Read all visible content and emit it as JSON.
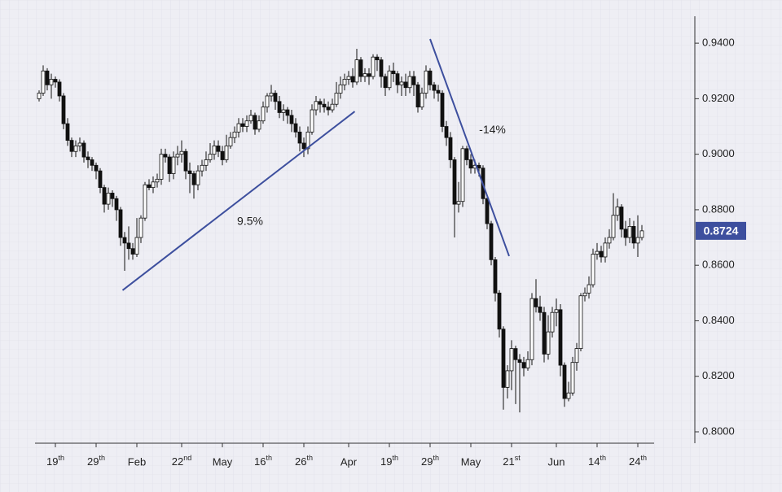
{
  "chart_data": {
    "type": "candlestick",
    "open": [
      0.92,
      0.922,
      0.93,
      0.925,
      0.927,
      0.926,
      0.921,
      0.911,
      0.905,
      0.901,
      0.903,
      0.904,
      0.899,
      0.898,
      0.896,
      0.894,
      0.888,
      0.882,
      0.886,
      0.884,
      0.88,
      0.87,
      0.868,
      0.866,
      0.864,
      0.87,
      0.877,
      0.889,
      0.888,
      0.89,
      0.891,
      0.9,
      0.899,
      0.893,
      0.899,
      0.9,
      0.901,
      0.894,
      0.893,
      0.889,
      0.894,
      0.896,
      0.898,
      0.9,
      0.903,
      0.901,
      0.898,
      0.903,
      0.906,
      0.908,
      0.911,
      0.91,
      0.912,
      0.914,
      0.909,
      0.912,
      0.917,
      0.921,
      0.922,
      0.919,
      0.915,
      0.916,
      0.914,
      0.911,
      0.908,
      0.904,
      0.902,
      0.908,
      0.916,
      0.919,
      0.918,
      0.917,
      0.916,
      0.918,
      0.922,
      0.925,
      0.927,
      0.928,
      0.926,
      0.934,
      0.928,
      0.929,
      0.928,
      0.935,
      0.934,
      0.928,
      0.924,
      0.93,
      0.929,
      0.925,
      0.926,
      0.924,
      0.928,
      0.925,
      0.917,
      0.922,
      0.93,
      0.925,
      0.923,
      0.922,
      0.91,
      0.906,
      0.898,
      0.882,
      0.883,
      0.902,
      0.898,
      0.895,
      0.896,
      0.895,
      0.884,
      0.875,
      0.862,
      0.85,
      0.837,
      0.816,
      0.822,
      0.83,
      0.826,
      0.825,
      0.823,
      0.826,
      0.848,
      0.845,
      0.843,
      0.828,
      0.836,
      0.843,
      0.844,
      0.824,
      0.812,
      0.814,
      0.825,
      0.83,
      0.849,
      0.85,
      0.853,
      0.864,
      0.865,
      0.863,
      0.868,
      0.87,
      0.878,
      0.881,
      0.873,
      0.87,
      0.874,
      0.868,
      0.87
    ],
    "high": [
      0.923,
      0.932,
      0.931,
      0.929,
      0.928,
      0.927,
      0.922,
      0.913,
      0.906,
      0.905,
      0.906,
      0.905,
      0.901,
      0.899,
      0.897,
      0.895,
      0.889,
      0.888,
      0.887,
      0.885,
      0.881,
      0.872,
      0.874,
      0.868,
      0.877,
      0.878,
      0.89,
      0.891,
      0.892,
      0.893,
      0.902,
      0.902,
      0.9,
      0.901,
      0.903,
      0.905,
      0.902,
      0.897,
      0.894,
      0.896,
      0.898,
      0.901,
      0.904,
      0.905,
      0.905,
      0.903,
      0.907,
      0.908,
      0.91,
      0.913,
      0.913,
      0.914,
      0.916,
      0.915,
      0.914,
      0.919,
      0.922,
      0.925,
      0.923,
      0.921,
      0.918,
      0.917,
      0.916,
      0.913,
      0.91,
      0.906,
      0.91,
      0.918,
      0.921,
      0.92,
      0.92,
      0.919,
      0.92,
      0.926,
      0.928,
      0.929,
      0.93,
      0.931,
      0.938,
      0.935,
      0.931,
      0.931,
      0.936,
      0.936,
      0.935,
      0.929,
      0.932,
      0.933,
      0.93,
      0.928,
      0.929,
      0.93,
      0.93,
      0.926,
      0.924,
      0.932,
      0.931,
      0.926,
      0.925,
      0.923,
      0.912,
      0.908,
      0.899,
      0.89,
      0.903,
      0.903,
      0.9,
      0.898,
      0.897,
      0.896,
      0.885,
      0.876,
      0.863,
      0.851,
      0.838,
      0.824,
      0.833,
      0.831,
      0.828,
      0.827,
      0.829,
      0.85,
      0.855,
      0.849,
      0.845,
      0.842,
      0.845,
      0.848,
      0.846,
      0.825,
      0.818,
      0.827,
      0.832,
      0.85,
      0.852,
      0.856,
      0.866,
      0.868,
      0.867,
      0.87,
      0.873,
      0.886,
      0.884,
      0.882,
      0.876,
      0.877,
      0.876,
      0.878,
      0.8745
    ],
    "low": [
      0.919,
      0.921,
      0.923,
      0.92,
      0.924,
      0.919,
      0.909,
      0.903,
      0.899,
      0.899,
      0.901,
      0.897,
      0.895,
      0.894,
      0.891,
      0.886,
      0.879,
      0.88,
      0.881,
      0.876,
      0.867,
      0.858,
      0.862,
      0.862,
      0.863,
      0.868,
      0.876,
      0.887,
      0.886,
      0.888,
      0.889,
      0.897,
      0.89,
      0.891,
      0.896,
      0.897,
      0.891,
      0.886,
      0.884,
      0.887,
      0.892,
      0.894,
      0.897,
      0.898,
      0.899,
      0.896,
      0.897,
      0.902,
      0.904,
      0.906,
      0.908,
      0.908,
      0.911,
      0.907,
      0.908,
      0.911,
      0.915,
      0.919,
      0.916,
      0.913,
      0.912,
      0.911,
      0.908,
      0.906,
      0.901,
      0.899,
      0.9,
      0.907,
      0.914,
      0.915,
      0.915,
      0.914,
      0.915,
      0.917,
      0.92,
      0.923,
      0.925,
      0.924,
      0.925,
      0.926,
      0.926,
      0.925,
      0.927,
      0.93,
      0.924,
      0.921,
      0.923,
      0.926,
      0.922,
      0.921,
      0.921,
      0.922,
      0.921,
      0.915,
      0.916,
      0.92,
      0.923,
      0.92,
      0.919,
      0.908,
      0.903,
      0.895,
      0.87,
      0.879,
      0.881,
      0.896,
      0.893,
      0.893,
      0.892,
      0.882,
      0.873,
      0.86,
      0.847,
      0.834,
      0.808,
      0.812,
      0.815,
      0.81,
      0.807,
      0.82,
      0.822,
      0.824,
      0.843,
      0.84,
      0.825,
      0.826,
      0.834,
      0.838,
      0.82,
      0.809,
      0.811,
      0.813,
      0.822,
      0.829,
      0.847,
      0.848,
      0.852,
      0.862,
      0.861,
      0.861,
      0.866,
      0.869,
      0.876,
      0.87,
      0.867,
      0.868,
      0.866,
      0.863,
      0.869
    ],
    "close": [
      0.922,
      0.93,
      0.925,
      0.927,
      0.926,
      0.921,
      0.911,
      0.905,
      0.901,
      0.903,
      0.904,
      0.899,
      0.898,
      0.896,
      0.894,
      0.888,
      0.882,
      0.886,
      0.884,
      0.88,
      0.87,
      0.868,
      0.866,
      0.864,
      0.87,
      0.877,
      0.889,
      0.888,
      0.89,
      0.891,
      0.9,
      0.899,
      0.893,
      0.899,
      0.9,
      0.901,
      0.894,
      0.893,
      0.889,
      0.894,
      0.896,
      0.898,
      0.9,
      0.903,
      0.901,
      0.898,
      0.903,
      0.906,
      0.908,
      0.911,
      0.91,
      0.912,
      0.914,
      0.909,
      0.912,
      0.917,
      0.921,
      0.922,
      0.919,
      0.915,
      0.916,
      0.914,
      0.911,
      0.908,
      0.904,
      0.902,
      0.908,
      0.916,
      0.919,
      0.918,
      0.917,
      0.916,
      0.918,
      0.922,
      0.925,
      0.927,
      0.928,
      0.926,
      0.934,
      0.928,
      0.929,
      0.928,
      0.935,
      0.934,
      0.928,
      0.924,
      0.93,
      0.929,
      0.925,
      0.926,
      0.924,
      0.928,
      0.925,
      0.917,
      0.922,
      0.93,
      0.925,
      0.923,
      0.922,
      0.91,
      0.906,
      0.898,
      0.882,
      0.883,
      0.902,
      0.898,
      0.895,
      0.896,
      0.895,
      0.884,
      0.875,
      0.862,
      0.85,
      0.837,
      0.816,
      0.822,
      0.83,
      0.826,
      0.825,
      0.823,
      0.826,
      0.848,
      0.845,
      0.843,
      0.828,
      0.836,
      0.843,
      0.844,
      0.824,
      0.812,
      0.814,
      0.825,
      0.83,
      0.849,
      0.85,
      0.853,
      0.864,
      0.865,
      0.863,
      0.868,
      0.87,
      0.878,
      0.881,
      0.873,
      0.87,
      0.874,
      0.868,
      0.87,
      0.8724
    ],
    "last_label": "0.8724",
    "up_color": "#ffffff",
    "down_color": "#111111",
    "accent_color": "#3d4f9e",
    "xlim": [
      -1,
      151
    ],
    "xticks": [
      {
        "value": 4,
        "label": "19th"
      },
      {
        "value": 14,
        "label": "29th"
      },
      {
        "value": 24,
        "label": "Feb"
      },
      {
        "value": 35,
        "label": "22nd"
      },
      {
        "value": 45,
        "label": "May"
      },
      {
        "value": 55,
        "label": "16th"
      },
      {
        "value": 65,
        "label": "26th"
      },
      {
        "value": 76,
        "label": "Apr"
      },
      {
        "value": 86,
        "label": "19th"
      },
      {
        "value": 96,
        "label": "29th"
      },
      {
        "value": 106,
        "label": "May"
      },
      {
        "value": 116,
        "label": "21st"
      },
      {
        "value": 127,
        "label": "Jun"
      },
      {
        "value": 137,
        "label": "14th"
      },
      {
        "value": 147,
        "label": "24th"
      }
    ],
    "ylim": [
      0.7959,
      0.9497
    ],
    "yticks": [
      {
        "value": 0.8,
        "label": "0.8000"
      },
      {
        "value": 0.82,
        "label": "0.8200"
      },
      {
        "value": 0.84,
        "label": "0.8400"
      },
      {
        "value": 0.86,
        "label": "0.8600"
      },
      {
        "value": 0.88,
        "label": "0.8800"
      },
      {
        "value": 0.9,
        "label": "0.9000"
      },
      {
        "value": 0.92,
        "label": "0.9200"
      },
      {
        "value": 0.94,
        "label": "0.9400"
      }
    ],
    "annotations": [
      {
        "text": "9.5%",
        "x": [
          20.5,
          77.5
        ],
        "y": [
          0.851,
          0.9154
        ]
      },
      {
        "text": "-14%",
        "x": [
          96,
          115.4
        ],
        "y": [
          0.9415,
          0.8633
        ]
      }
    ],
    "grid": true
  }
}
